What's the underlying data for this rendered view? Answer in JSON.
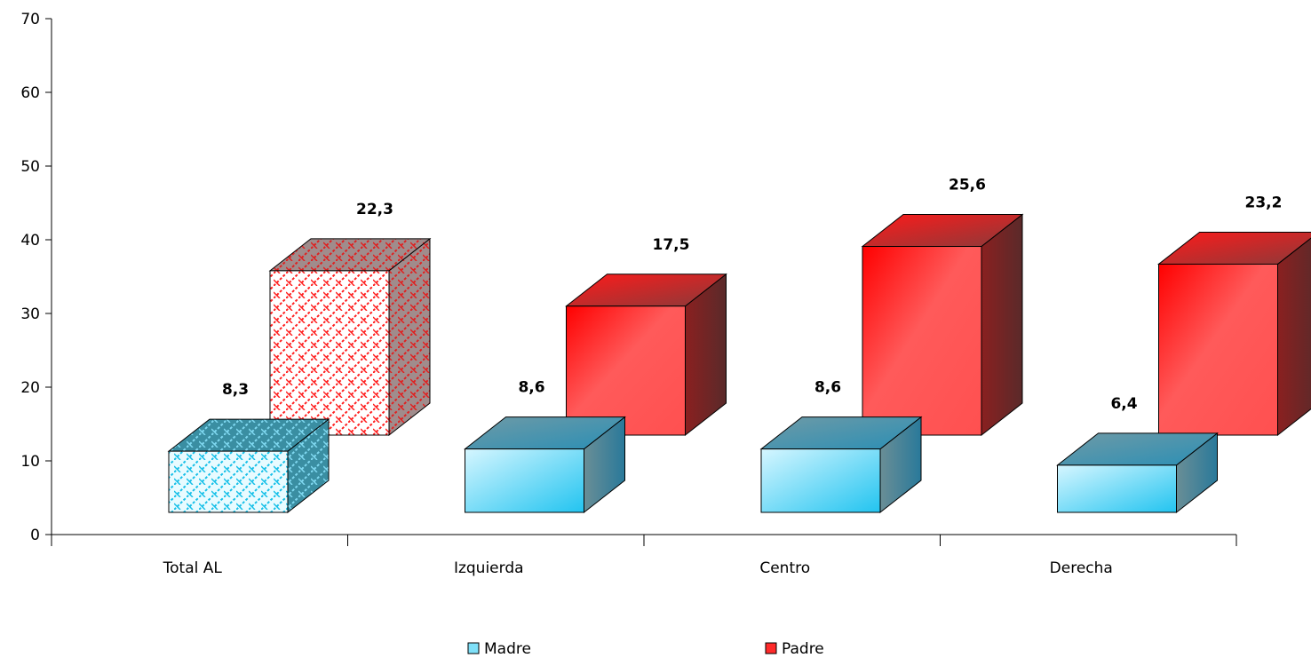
{
  "chart_data": {
    "type": "bar",
    "title": "",
    "xlabel": "",
    "ylabel": "",
    "ylim": [
      0,
      70
    ],
    "yticks": [
      0,
      10,
      20,
      30,
      40,
      50,
      60,
      70
    ],
    "categories": [
      "Total AL",
      "Izquierda",
      "Centro",
      "Derecha"
    ],
    "series": [
      {
        "name": "Madre",
        "values": [
          8.3,
          8.6,
          8.6,
          6.4
        ],
        "labels": [
          "8,3",
          "8,6",
          "8,6",
          "6,4"
        ],
        "color": "#7fd8f0"
      },
      {
        "name": "Padre",
        "values": [
          22.3,
          17.5,
          25.6,
          23.2
        ],
        "labels": [
          "22,3",
          "17,5",
          "25,6",
          "23,2"
        ],
        "color": "#ff2a2a"
      }
    ],
    "grid": false,
    "legend_position": "bottom",
    "style": "3d",
    "patterned_category": "Total AL"
  }
}
